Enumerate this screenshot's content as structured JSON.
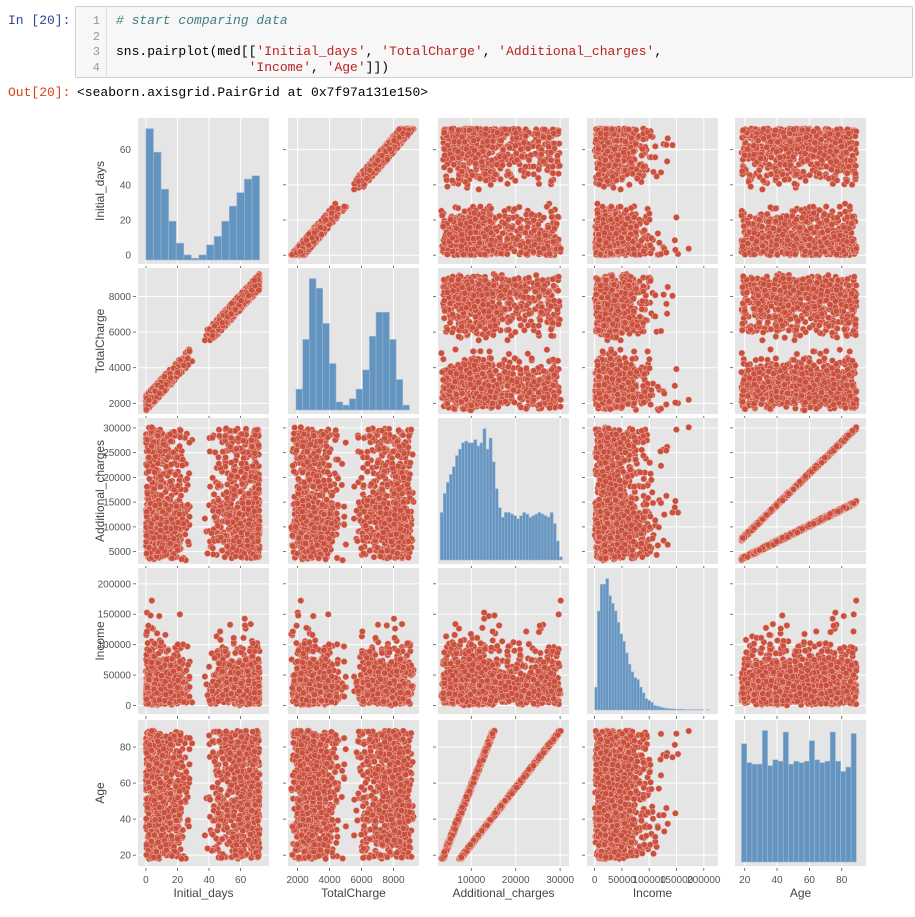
{
  "notebook": {
    "in_prompt": "In [20]:",
    "out_prompt": "Out[20]:",
    "line_numbers": [
      "1",
      "2",
      "3",
      "4"
    ],
    "code_lines": [
      [
        {
          "t": "# start comparing data",
          "k": "comment"
        }
      ],
      [],
      [
        {
          "t": "sns.pairplot(med[[",
          "k": "plain"
        },
        {
          "t": "'Initial_days'",
          "k": "str"
        },
        {
          "t": ", ",
          "k": "plain"
        },
        {
          "t": "'TotalCharge'",
          "k": "str"
        },
        {
          "t": ", ",
          "k": "plain"
        },
        {
          "t": "'Additional_charges'",
          "k": "str"
        },
        {
          "t": ",",
          "k": "plain"
        }
      ],
      [
        {
          "t": "                 ",
          "k": "plain"
        },
        {
          "t": "'Income'",
          "k": "str"
        },
        {
          "t": ", ",
          "k": "plain"
        },
        {
          "t": "'Age'",
          "k": "str"
        },
        {
          "t": "]])",
          "k": "plain"
        }
      ]
    ],
    "output_text": "<seaborn.axisgrid.PairGrid at 0x7f97a131e150>"
  },
  "chart_data": {
    "type": "pairplot",
    "colors": {
      "scatter_fill": "#C9503E",
      "scatter_edge": "#F2B9AD",
      "hist_fill": "#6494C0",
      "hist_edge": "#9DB8D3",
      "panel_bg": "#E5E5E5",
      "grid": "#FFFFFF"
    },
    "variables": [
      {
        "label": "Initial_days",
        "range": [
          -5,
          78
        ],
        "ticks": [
          0,
          20,
          40,
          60
        ]
      },
      {
        "label": "TotalCharge",
        "range": [
          1400,
          9600
        ],
        "ticks": [
          2000,
          4000,
          6000,
          8000
        ]
      },
      {
        "label": "Additional_charges",
        "range": [
          2500,
          32000
        ],
        "ticks": [
          5000,
          10000,
          15000,
          20000,
          25000,
          30000
        ],
        "xticks": [
          10000,
          20000,
          30000
        ]
      },
      {
        "label": "Income",
        "range": [
          -14000,
          226000
        ],
        "ticks": [
          0,
          50000,
          100000,
          150000,
          200000
        ]
      },
      {
        "label": "Age",
        "range": [
          14,
          95
        ],
        "ticks": [
          20,
          40,
          60,
          80
        ]
      }
    ],
    "histograms": [
      {
        "variable": "Initial_days",
        "bin_range": [
          0,
          72
        ],
        "relative_heights": [
          78,
          64,
          42,
          23,
          10,
          3,
          1,
          3,
          9,
          14,
          23,
          32,
          40,
          48,
          50
        ]
      },
      {
        "variable": "TotalCharge",
        "bin_range": [
          1900,
          9000
        ],
        "relative_heights": [
          65,
          220,
          410,
          380,
          270,
          145,
          25,
          15,
          35,
          65,
          125,
          230,
          305,
          305,
          220,
          95,
          15
        ]
      },
      {
        "variable": "Additional_charges",
        "bin_range": [
          3000,
          30500
        ],
        "relative_heights": [
          150,
          210,
          245,
          270,
          295,
          330,
          350,
          370,
          375,
          370,
          370,
          380,
          360,
          370,
          415,
          350,
          385,
          310,
          225,
          165,
          135,
          150,
          150,
          145,
          140,
          130,
          140,
          150,
          145,
          135,
          140,
          145,
          150,
          145,
          140,
          135,
          150,
          115,
          60,
          10
        ]
      },
      {
        "variable": "Income",
        "bin_range": [
          0,
          210000
        ],
        "relative_heights": [
          60,
          260,
          330,
          330,
          345,
          300,
          280,
          260,
          230,
          200,
          180,
          150,
          120,
          100,
          85,
          80,
          60,
          45,
          30,
          25,
          20,
          12,
          10,
          8,
          6,
          5,
          4,
          3,
          3,
          2,
          2,
          2,
          1,
          1,
          1,
          1,
          1,
          1,
          1,
          0,
          1
        ]
      },
      {
        "variable": "Age",
        "bin_range": [
          18,
          89
        ],
        "relative_heights": [
          81,
          68,
          67,
          67,
          90,
          66,
          70,
          69,
          89,
          67,
          69,
          68,
          69,
          83,
          70,
          68,
          69,
          89,
          69,
          62,
          65,
          88
        ]
      }
    ],
    "scatter_model": {
      "n_points": 1500,
      "Initial_days": {
        "mode_low": [
          0,
          30
        ],
        "mode_high": [
          36,
          72
        ]
      },
      "TotalCharge": {
        "intercept": 2000,
        "slope_per_day": 95,
        "noise": 900
      },
      "Age": {
        "range": [
          18,
          89
        ]
      },
      "Additional_charges": {
        "line_a": [
          3500,
          15000
        ],
        "line_b": [
          7500,
          30000
        ],
        "noise": 600
      },
      "Income": {
        "scale": 20000,
        "max": 207000
      }
    }
  }
}
